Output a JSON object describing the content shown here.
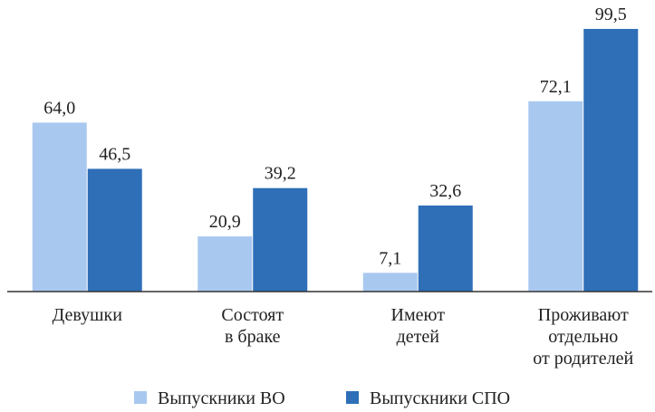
{
  "chart_data": {
    "type": "bar",
    "categories": [
      "Девушки",
      "Состоят\nв браке",
      "Имеют\nдетей",
      "Проживают\nотдельно\nот родителей"
    ],
    "series": [
      {
        "name": "Выпускники ВО",
        "color": "#a9c8f0",
        "values": [
          64.0,
          20.9,
          7.1,
          72.1
        ],
        "value_labels": [
          "64,0",
          "20,9",
          "7,1",
          "72,1"
        ]
      },
      {
        "name": "Выпускники СПО",
        "color": "#2e6fb7",
        "values": [
          46.5,
          39.2,
          32.6,
          99.5
        ],
        "value_labels": [
          "46,5",
          "39,2",
          "32,6",
          "99,5"
        ]
      }
    ],
    "ylim": [
      0,
      100
    ]
  }
}
